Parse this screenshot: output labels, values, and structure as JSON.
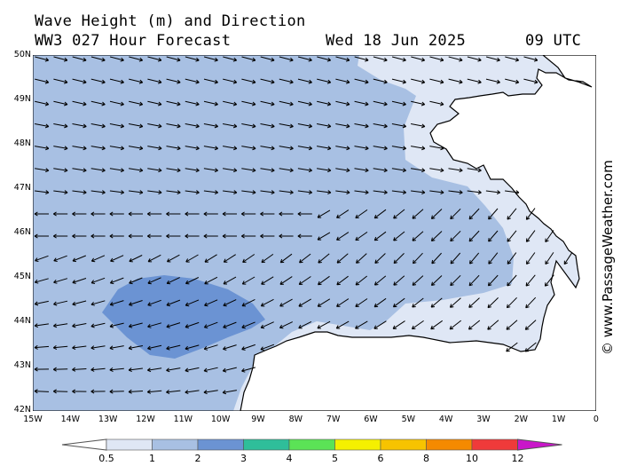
{
  "header": {
    "title": "Wave Height (m) and Direction",
    "model": "WW3 027 Hour Forecast",
    "date": "Wed 18 Jun 2025",
    "time": "09 UTC"
  },
  "credit": "© www.PassageWeather.com",
  "map": {
    "lat_labels": [
      "50N",
      "49N",
      "48N",
      "47N",
      "46N",
      "45N",
      "44N",
      "43N",
      "42N"
    ],
    "lon_labels": [
      "15W",
      "14W",
      "13W",
      "12W",
      "11W",
      "10W",
      "9W",
      "8W",
      "7W",
      "6W",
      "5W",
      "4W",
      "3W",
      "2W",
      "1W",
      "0"
    ],
    "lat_range": [
      42,
      50
    ],
    "lon_range": [
      -15,
      0
    ]
  },
  "colorbar": {
    "labels": [
      "0.5",
      "1",
      "2",
      "3",
      "4",
      "5",
      "6",
      "8",
      "10",
      "12"
    ],
    "colors": [
      "#dfe7f5",
      "#a8c0e3",
      "#6b93d3",
      "#2fbe9a",
      "#5be356",
      "#f5f000",
      "#f7c300",
      "#f58a00",
      "#ef3a3a",
      "#bf0000",
      "#c916c9"
    ]
  },
  "wave_colors": {
    "low": "#dfe7f5",
    "mid": "#a8c0e3",
    "high": "#6b93d3",
    "land": "#ffffff"
  }
}
